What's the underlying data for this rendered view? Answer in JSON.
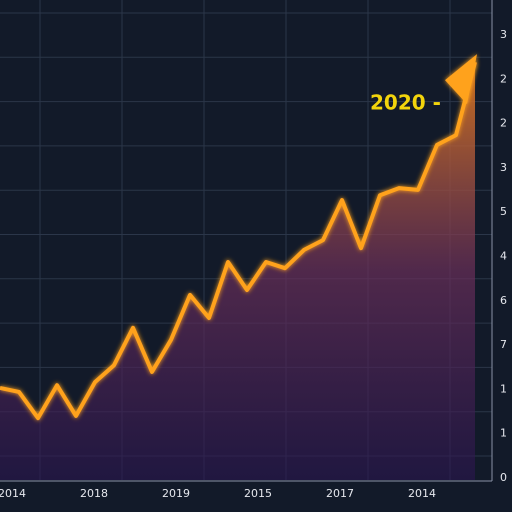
{
  "chart_data": {
    "type": "area",
    "annotation": "2020 -",
    "x_axis_labels": [
      "2014",
      "2018",
      "2019",
      "2015",
      "2017",
      "2014"
    ],
    "y_axis_labels": [
      "3",
      "2",
      "2",
      "3",
      "5",
      "4",
      "6",
      "7",
      "1",
      "1",
      "0"
    ],
    "ylim": [
      0,
      100
    ],
    "color": "#ffa21f",
    "grid": true,
    "values": [
      20.7,
      19.8,
      13.9,
      21.3,
      14.4,
      22,
      25.8,
      34.2,
      24.3,
      31.5,
      41.6,
      36.4,
      49,
      42.7,
      49,
      47.6,
      51.7,
      53.9,
      62.9,
      52.1,
      64,
      65.6,
      65.2,
      75.3,
      77.5,
      93.9
    ]
  }
}
